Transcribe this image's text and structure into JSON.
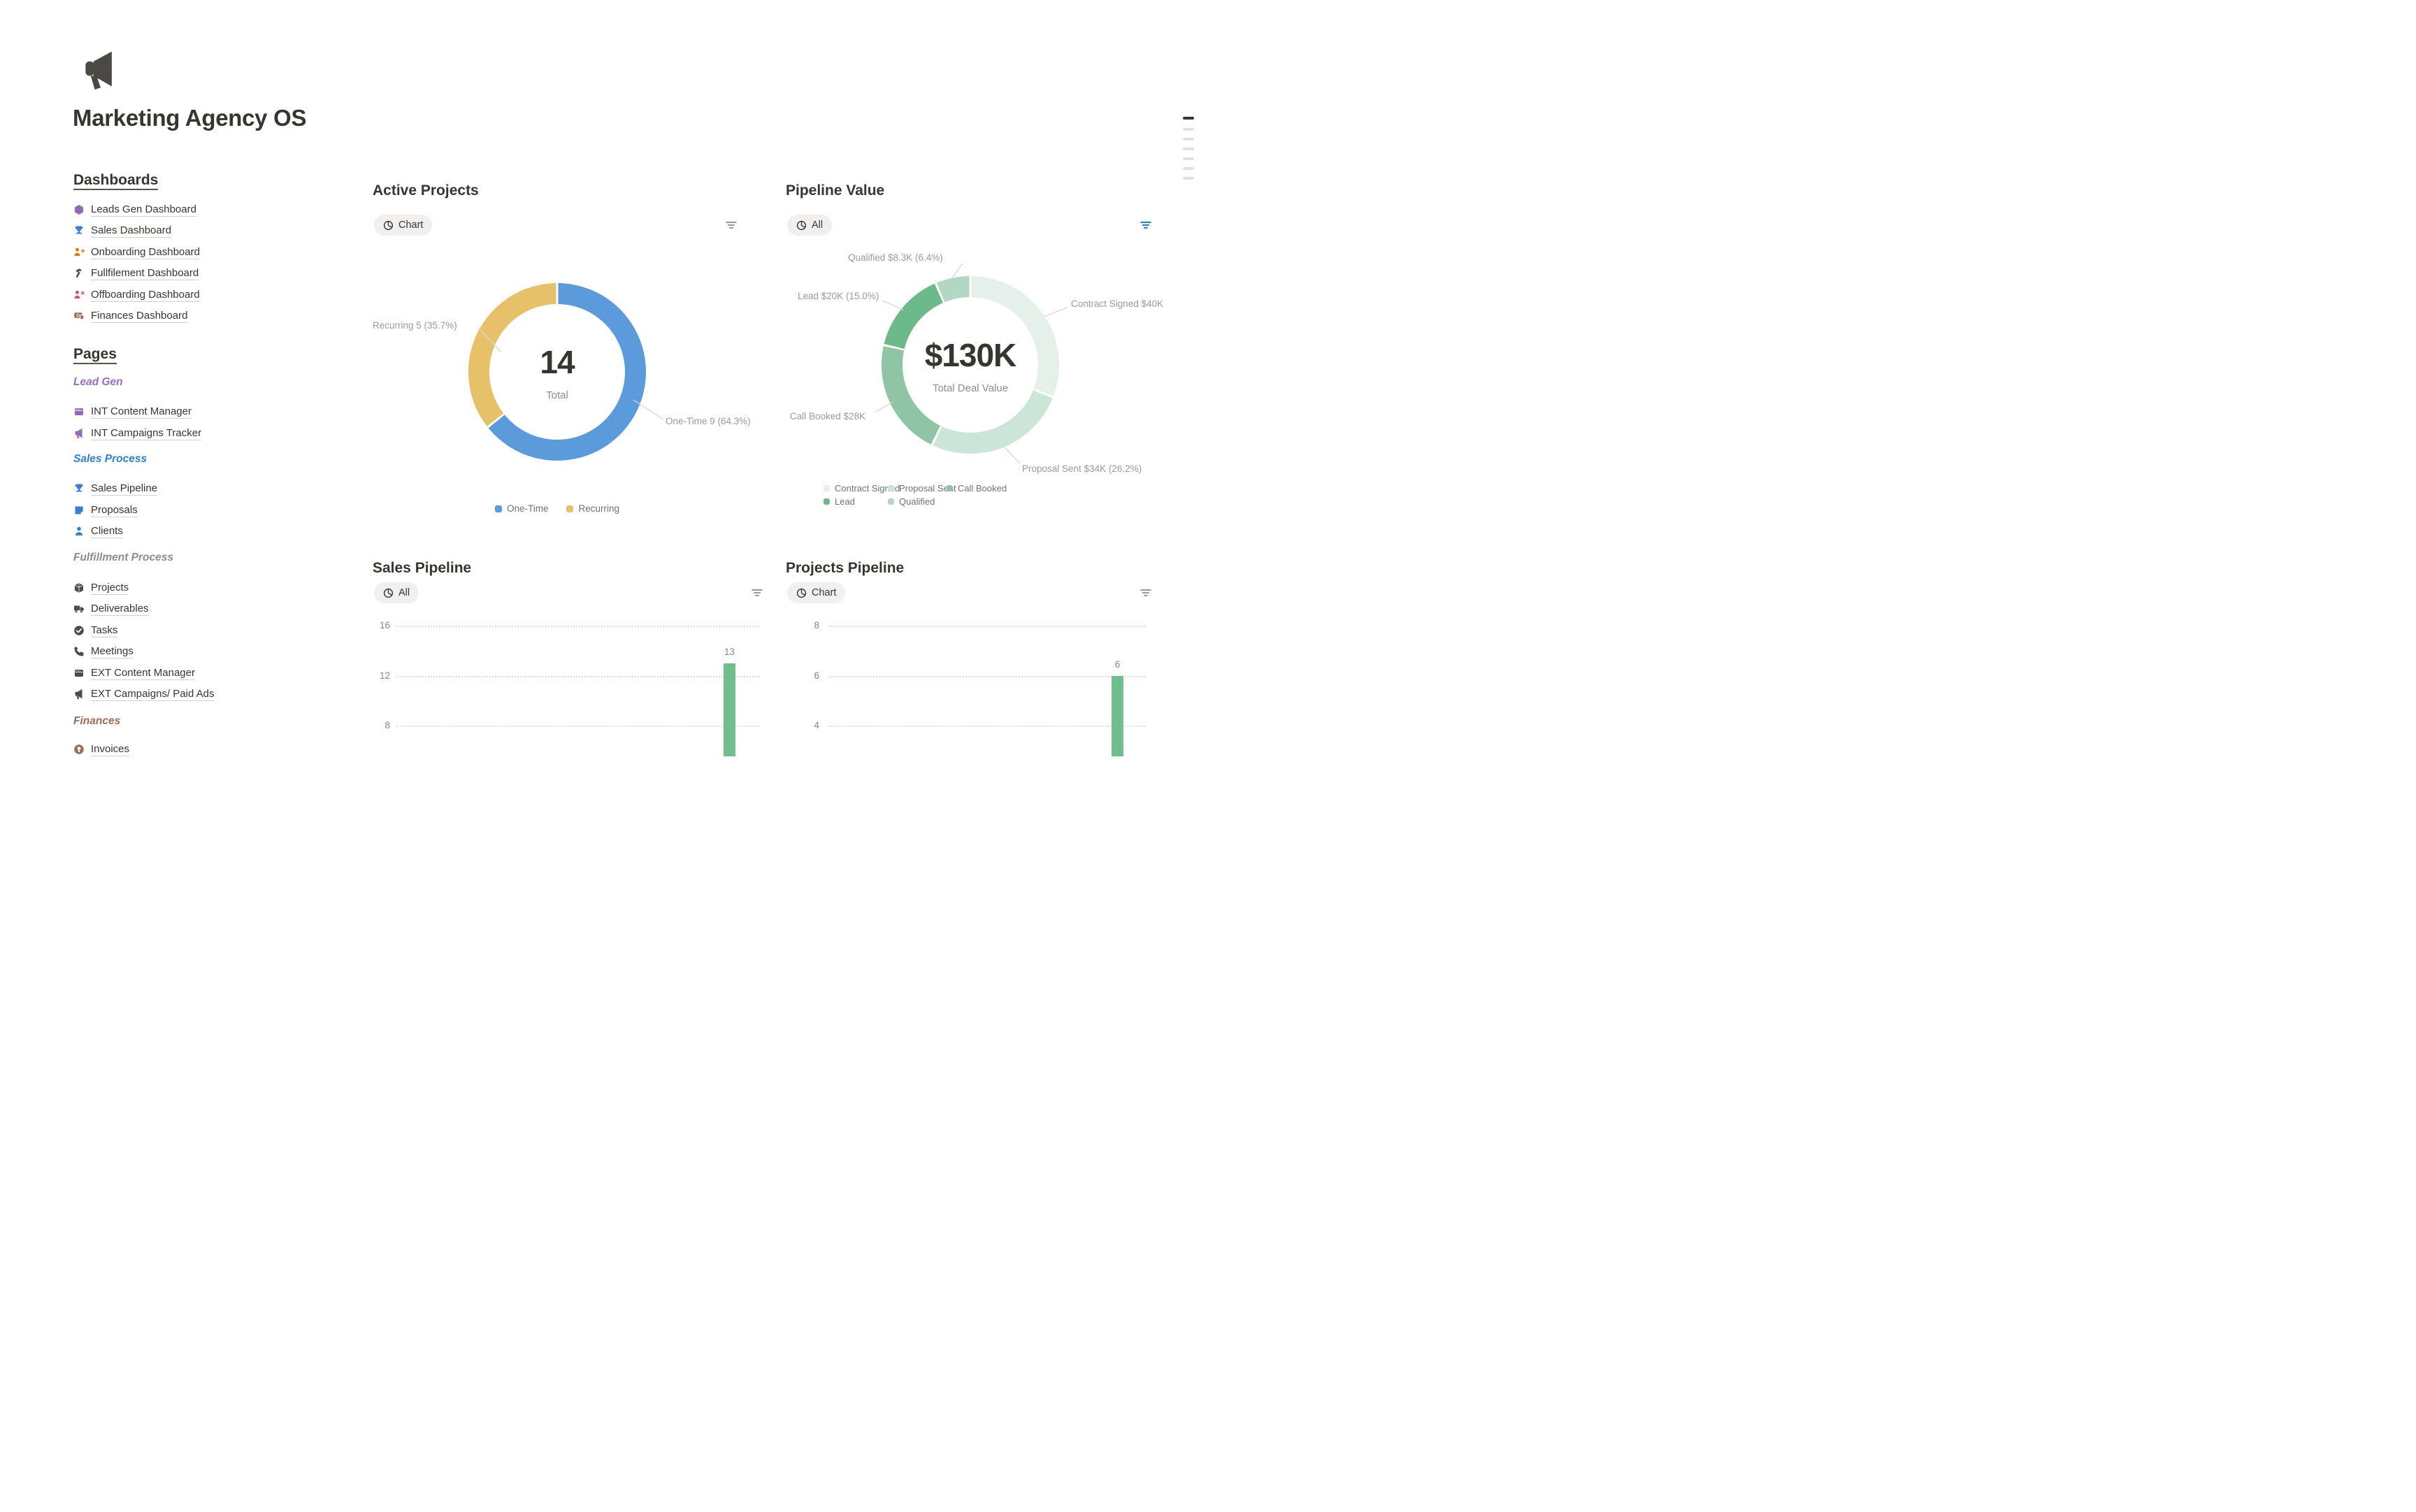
{
  "page": {
    "title": "Marketing Agency OS",
    "logo_icon": "megaphone-icon"
  },
  "colors": {
    "text": "#37352F",
    "muted_label": "#9B9A97",
    "axis_label": "#85847F",
    "legend_label": "#72716D",
    "filter_active": "#2383E2",
    "filter_inactive": "#9B9A97",
    "link_underline": "#D3D1CB",
    "outline_active": "#37352F",
    "outline_inactive": "#E2E1DE",
    "pill_background": "#F1F0EE",
    "bar_green": "#70BE8D"
  },
  "sidebar": {
    "dashboards": {
      "heading": "Dashboards",
      "items": [
        {
          "label": "Leads Gen Dashboard",
          "icon": "hexagon-icon",
          "color": "#9568B8"
        },
        {
          "label": "Sales Dashboard",
          "icon": "trophy-icon",
          "color": "#3580D3"
        },
        {
          "label": "Onboarding Dashboard",
          "icon": "person-plus-icon",
          "color": "#E0770E"
        },
        {
          "label": "Fullfilement Dashboard",
          "icon": "hammer-icon",
          "color": "#4D4B45"
        },
        {
          "label": "Offboarding Dashboard",
          "icon": "person-x-icon",
          "color": "#C75389"
        },
        {
          "label": "Finances Dashboard",
          "icon": "banknote-icon",
          "color": "#9F6B53"
        }
      ]
    },
    "pages_heading": "Pages",
    "groups": [
      {
        "heading": "Lead Gen",
        "color": "#9A6BC7",
        "items": [
          {
            "label": "INT Content Manager",
            "icon": "clapperboard-icon",
            "color": "#9568B8"
          },
          {
            "label": "INT Campaigns Tracker",
            "icon": "megaphone-icon",
            "color": "#9568B8"
          }
        ]
      },
      {
        "heading": "Sales Process",
        "color": "#2E80D4",
        "items": [
          {
            "label": "Sales Pipeline",
            "icon": "trophy-icon",
            "color": "#3580D3"
          },
          {
            "label": "Proposals",
            "icon": "note-icon",
            "color": "#3580D3"
          },
          {
            "label": "Clients",
            "icon": "person-icon",
            "color": "#3580D3"
          }
        ]
      },
      {
        "heading": "Fulfillment Process",
        "color": "#8E8C88",
        "items": [
          {
            "label": "Projects",
            "icon": "box-icon",
            "color": "#4D4B45"
          },
          {
            "label": "Deliverables",
            "icon": "truck-icon",
            "color": "#4D4B45"
          },
          {
            "label": "Tasks",
            "icon": "check-circle-icon",
            "color": "#4D4B45"
          },
          {
            "label": "Meetings",
            "icon": "phone-icon",
            "color": "#4D4B45"
          },
          {
            "label": "EXT Content Manager",
            "icon": "clapperboard-icon",
            "color": "#4D4B45"
          },
          {
            "label": "EXT Campaigns/ Paid Ads",
            "icon": "megaphone-icon",
            "color": "#4D4B45"
          }
        ]
      },
      {
        "heading": "Finances",
        "color": "#9F6B53",
        "items": [
          {
            "label": "Invoices",
            "icon": "arrow-up-circle-icon",
            "color": "#9F6B53"
          }
        ]
      }
    ]
  },
  "cards": {
    "active_projects": {
      "title": "Active Projects",
      "view_label": "Chart",
      "filter_color": "#9B9A97"
    },
    "pipeline_value": {
      "title": "Pipeline Value",
      "view_label": "All",
      "filter_color": "#2383E2"
    },
    "sales_pipeline": {
      "title": "Sales Pipeline",
      "view_label": "All",
      "filter_color": "#9B9A97"
    },
    "projects_pipeline": {
      "title": "Projects Pipeline",
      "view_label": "Chart",
      "filter_color": "#9B9A97"
    }
  },
  "chart_data": [
    {
      "id": "active_projects",
      "type": "donut",
      "title": "Active Projects",
      "center_value": "14",
      "center_label": "Total",
      "series": [
        {
          "name": "One-Time",
          "value": 9,
          "pct": 64.3,
          "color": "#5B9BDB",
          "callout": "One-Time 9 (64.3%)"
        },
        {
          "name": "Recurring",
          "value": 5,
          "pct": 35.7,
          "color": "#E7C06A",
          "callout": "Recurring 5 (35.7%)"
        }
      ],
      "legend_position": "bottom"
    },
    {
      "id": "pipeline_value",
      "type": "donut",
      "title": "Pipeline Value",
      "center_value": "$130K",
      "center_label": "Total Deal Value",
      "series": [
        {
          "name": "Contract Signed",
          "value": "$40K",
          "pct": 30.9,
          "color": "#E4F0E9",
          "callout": "Contract Signed $40K"
        },
        {
          "name": "Proposal Sent",
          "value": "$34K",
          "pct": 26.2,
          "color": "#CBE5D7",
          "callout": "Proposal Sent $34K (26.2%)"
        },
        {
          "name": "Call Booked",
          "value": "$28K",
          "pct": 21.5,
          "color": "#8FC5A5",
          "callout": "Call Booked $28K"
        },
        {
          "name": "Lead",
          "value": "$20K",
          "pct": 15.0,
          "color": "#6CB98C",
          "callout": "Lead $20K (15.0%)"
        },
        {
          "name": "Qualified",
          "value": "$8.3K",
          "pct": 6.4,
          "color": "#B2D8C3",
          "callout": "Qualified $8.3K (6.4%)"
        }
      ],
      "legend_position": "bottom"
    },
    {
      "id": "sales_pipeline",
      "type": "bar",
      "title": "Sales Pipeline",
      "yticks": [
        16,
        12,
        8
      ],
      "bars": [
        {
          "label": "13",
          "value": 13
        }
      ],
      "bar_color": "#70BE8D",
      "grid": "dotted-horizontal"
    },
    {
      "id": "projects_pipeline",
      "type": "bar",
      "title": "Projects Pipeline",
      "yticks": [
        8,
        6,
        4
      ],
      "bars": [
        {
          "label": "6",
          "value": 6
        }
      ],
      "bar_color": "#70BE8D",
      "grid": "dotted-horizontal"
    }
  ]
}
